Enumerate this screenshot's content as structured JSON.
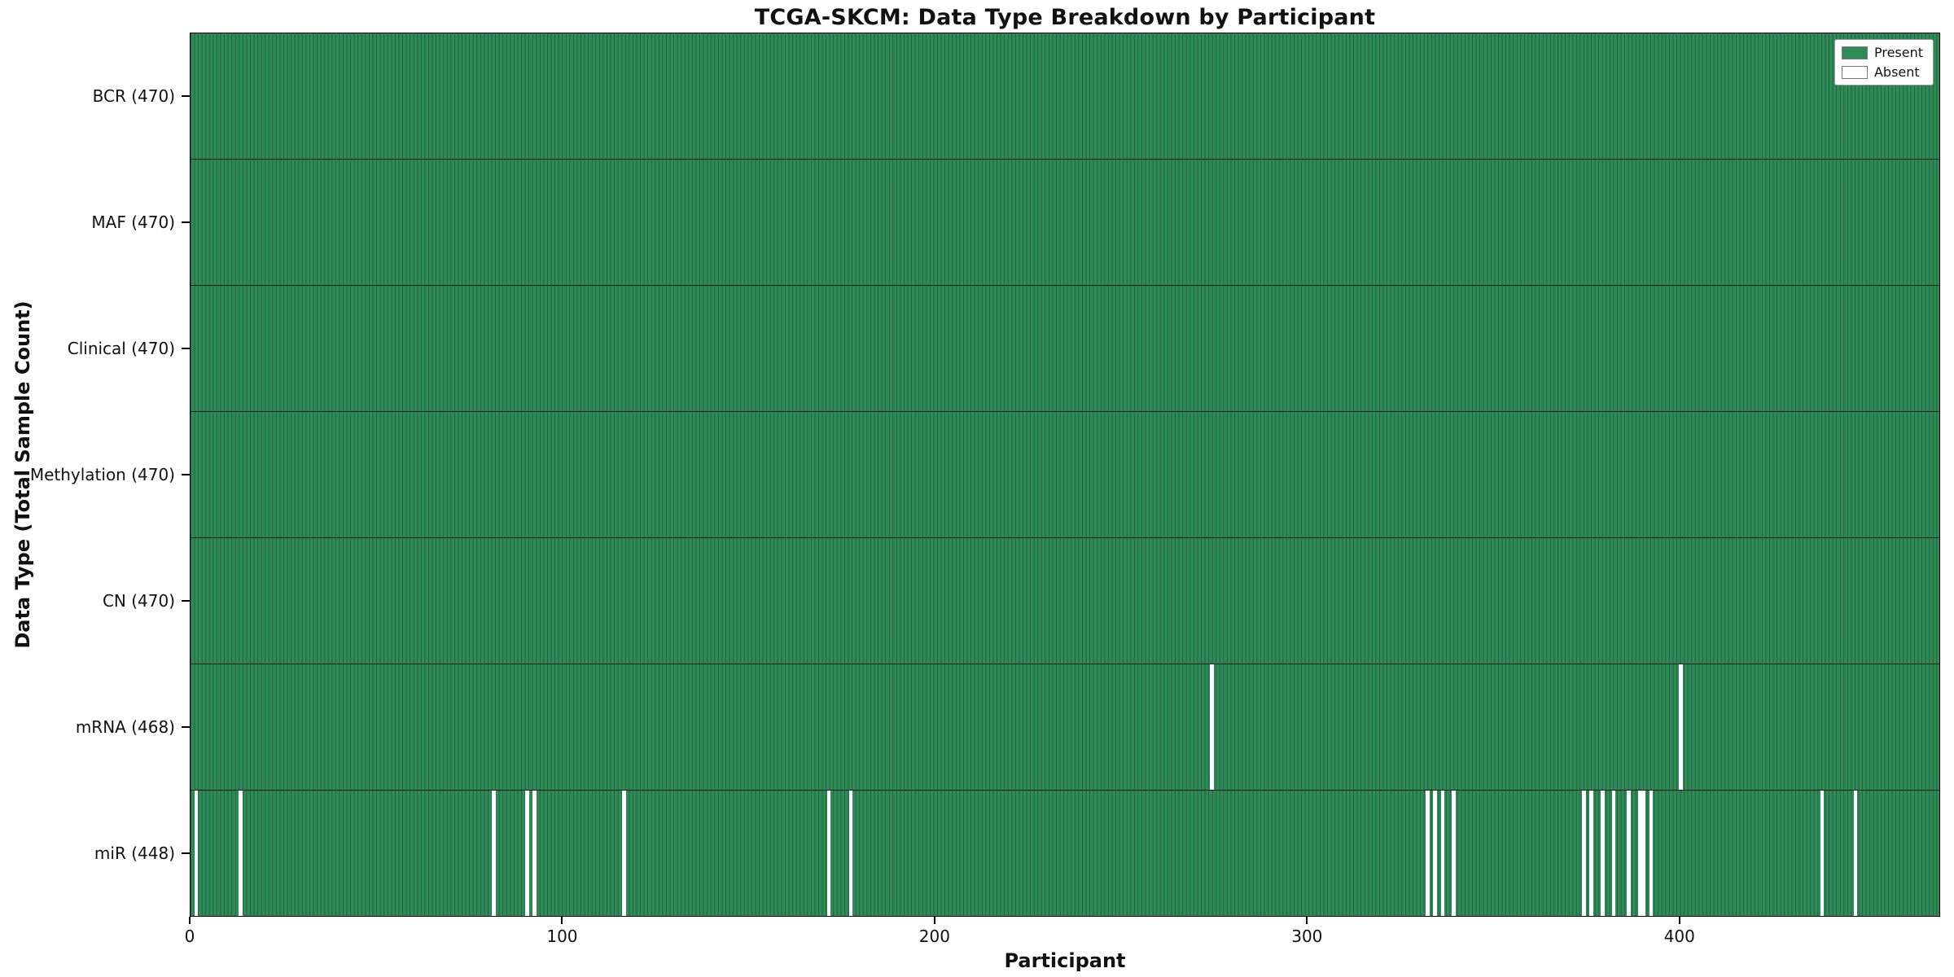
{
  "chart_data": {
    "type": "heatmap",
    "title": "TCGA-SKCM: Data Type Breakdown by Participant",
    "xlabel": "Participant",
    "ylabel": "Data Type (Total Sample Count)",
    "n_participants": 470,
    "x_ticks": [
      0,
      100,
      200,
      300,
      400
    ],
    "colors": {
      "present": "#2e8b57",
      "absent": "#ffffff",
      "grid_line": "rgba(0,0,0,0.30)"
    },
    "legend": {
      "items": [
        {
          "label": "Present",
          "color": "#2e8b57"
        },
        {
          "label": "Absent",
          "color": "#ffffff"
        }
      ]
    },
    "rows": [
      {
        "label": "BCR (470)",
        "data_type": "BCR",
        "total_samples": 470,
        "absent_participants": []
      },
      {
        "label": "MAF (470)",
        "data_type": "MAF",
        "total_samples": 470,
        "absent_participants": []
      },
      {
        "label": "Clinical (470)",
        "data_type": "Clinical",
        "total_samples": 470,
        "absent_participants": []
      },
      {
        "label": "Methylation (470)",
        "data_type": "Methylation",
        "total_samples": 470,
        "absent_participants": []
      },
      {
        "label": "CN (470)",
        "data_type": "CN",
        "total_samples": 470,
        "absent_participants": []
      },
      {
        "label": "mRNA (468)",
        "data_type": "mRNA",
        "total_samples": 468,
        "absent_participants": [
          274,
          400
        ]
      },
      {
        "label": "miR (448)",
        "data_type": "miR",
        "total_samples": 448,
        "absent_participants": [
          1,
          13,
          81,
          90,
          92,
          116,
          171,
          177,
          332,
          334,
          336,
          339,
          374,
          376,
          379,
          382,
          386,
          389,
          390,
          392,
          438,
          447
        ]
      }
    ]
  }
}
